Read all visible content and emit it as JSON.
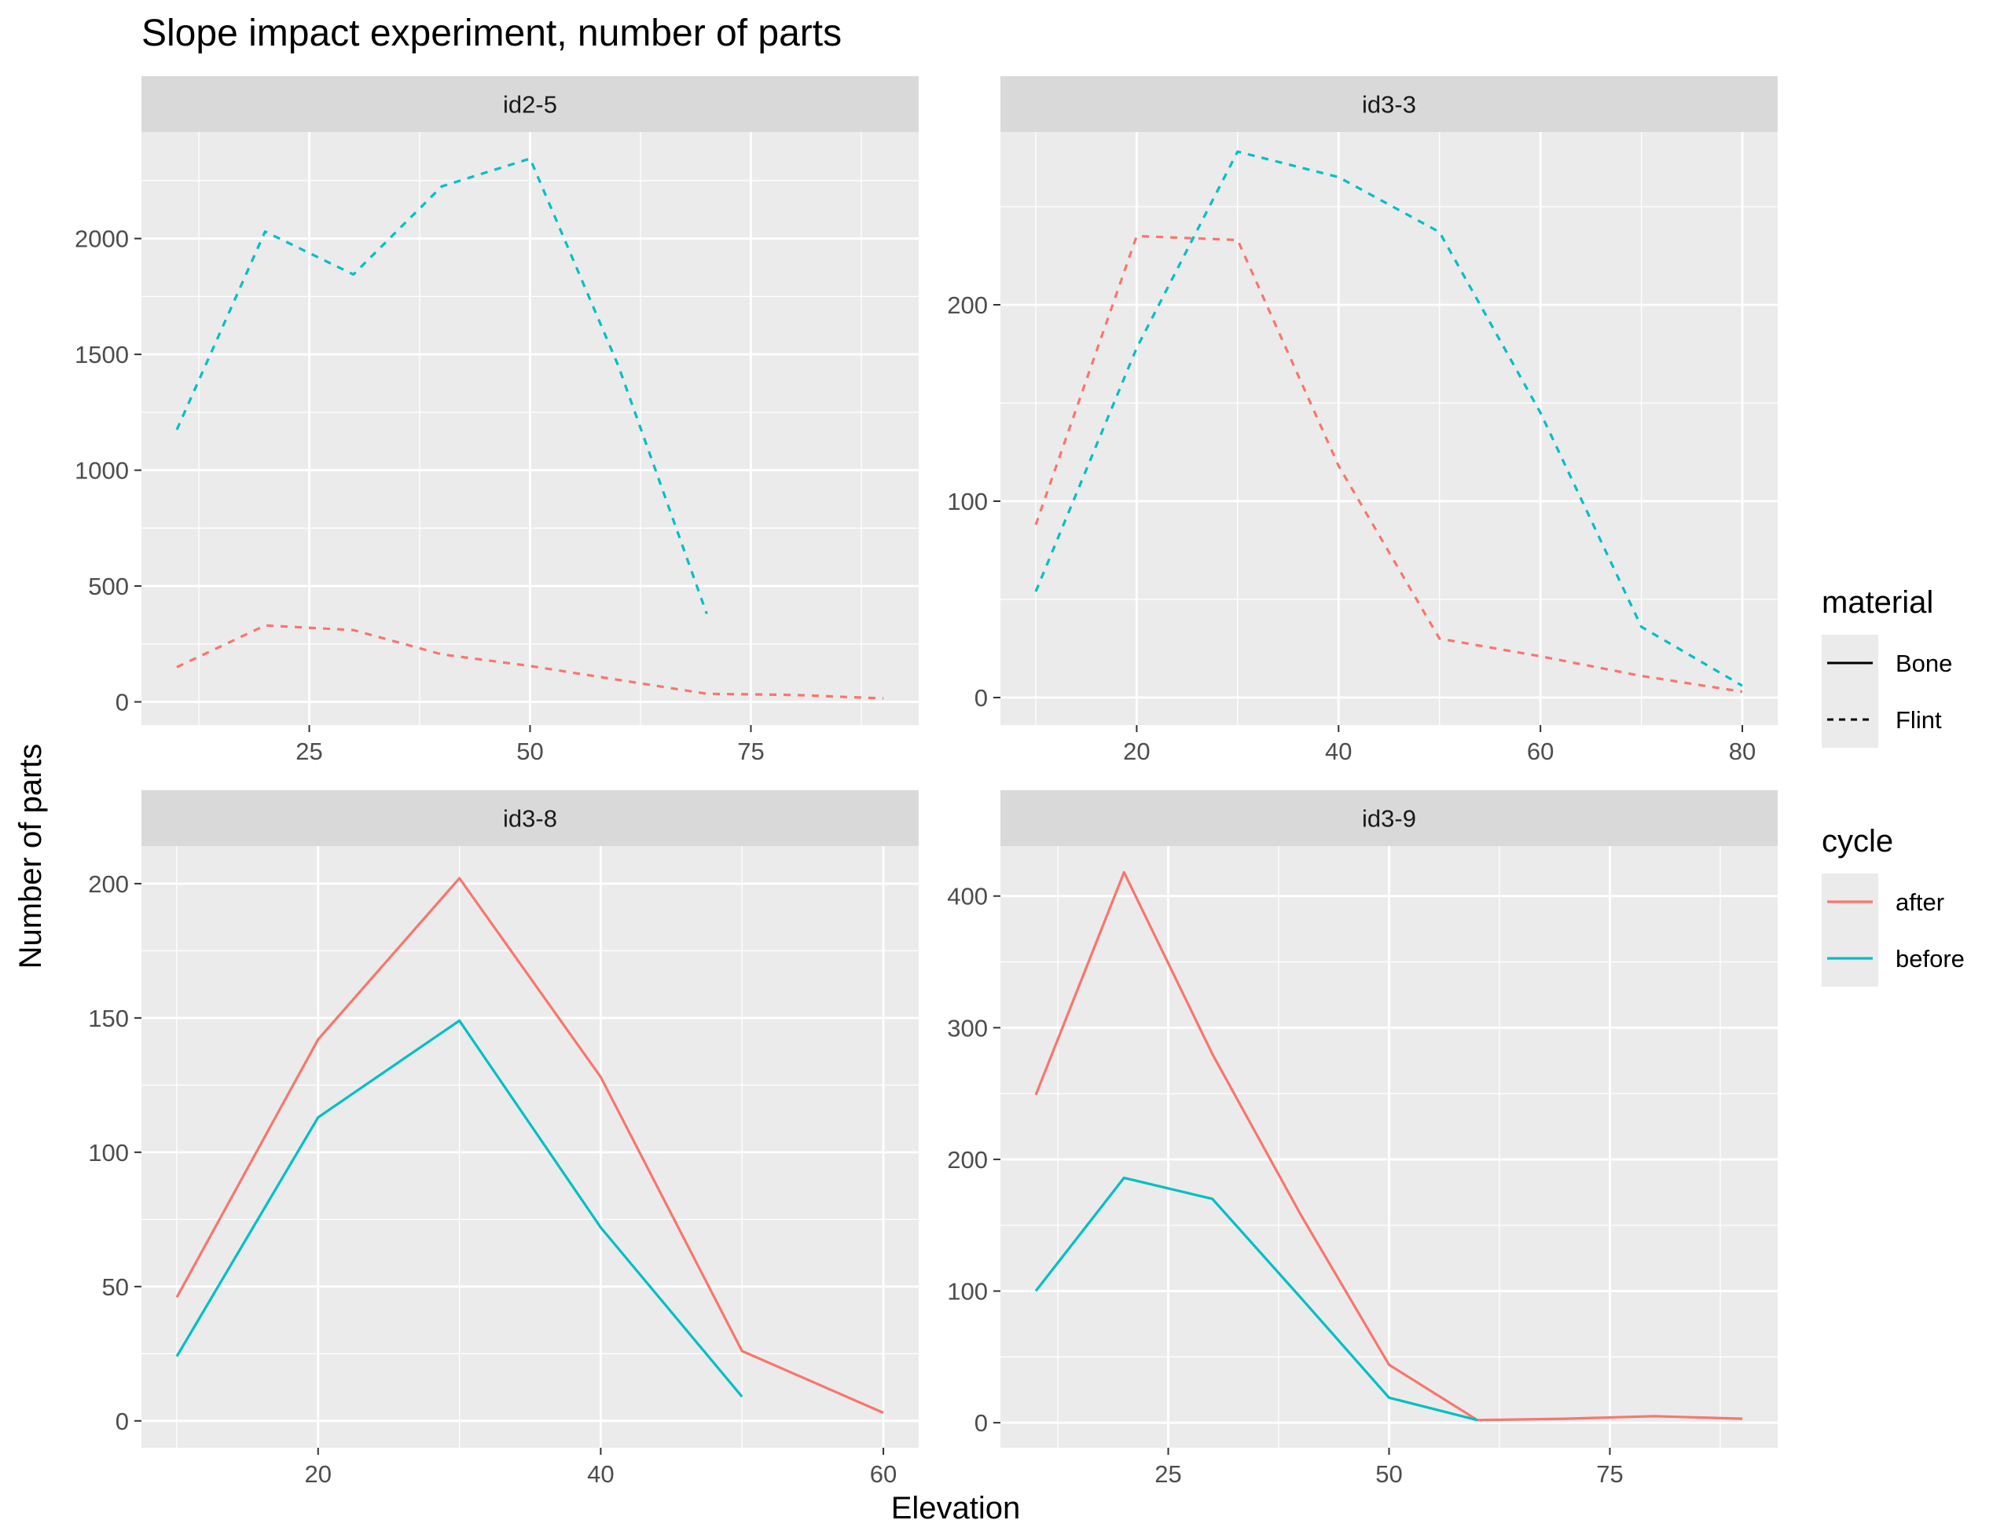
{
  "chart_data": {
    "type": "line",
    "title": "Slope impact experiment, number of parts",
    "xlabel": "Elevation",
    "ylabel": "Number of parts",
    "colors": {
      "after": "#F8766D",
      "before": "#00BFC4"
    },
    "legends": {
      "material": {
        "title": "material",
        "items": [
          {
            "label": "Bone",
            "linetype": "solid"
          },
          {
            "label": "Flint",
            "linetype": "dashed"
          }
        ]
      },
      "cycle": {
        "title": "cycle",
        "items": [
          {
            "label": "after",
            "color": "#F8766D"
          },
          {
            "label": "before",
            "color": "#00BFC4"
          }
        ]
      }
    },
    "legend_position": "right",
    "grid": true,
    "panels": [
      {
        "facet": "id2-5",
        "xlim": [
          6,
          94
        ],
        "ylim": [
          -100,
          2460
        ],
        "xticks": [
          25,
          50,
          75
        ],
        "xticks_minor": [
          12.5,
          37.5,
          62.5,
          87.5
        ],
        "yticks": [
          0,
          500,
          1000,
          1500,
          2000
        ],
        "yticks_minor": [
          250,
          750,
          1250,
          1750,
          2250
        ],
        "series": [
          {
            "material": "Flint",
            "cycle": "after",
            "x": [
              10,
              20,
              30,
              40,
              50,
              60,
              70,
              80,
              90
            ],
            "y": [
              150,
              330,
              310,
              205,
              155,
              95,
              35,
              30,
              15
            ]
          },
          {
            "material": "Flint",
            "cycle": "before",
            "x": [
              10,
              20,
              30,
              40,
              50,
              60,
              70
            ],
            "y": [
              1175,
              2030,
              1845,
              2225,
              2345,
              1450,
              380
            ]
          }
        ]
      },
      {
        "facet": "id3-3",
        "xlim": [
          6.5,
          83.5
        ],
        "ylim": [
          -14,
          288
        ],
        "xticks": [
          20,
          40,
          60,
          80
        ],
        "xticks_minor": [
          10,
          30,
          50,
          70
        ],
        "yticks": [
          0,
          100,
          200
        ],
        "yticks_minor": [
          50,
          150,
          250
        ],
        "series": [
          {
            "material": "Flint",
            "cycle": "after",
            "x": [
              10,
              20,
              30,
              40,
              50,
              60,
              70,
              80
            ],
            "y": [
              88,
              235,
              233,
              118,
              30,
              21,
              11,
              3
            ]
          },
          {
            "material": "Flint",
            "cycle": "before",
            "x": [
              10,
              20,
              30,
              40,
              50,
              60,
              70,
              80
            ],
            "y": [
              54,
              178,
              278,
              265,
              237,
              145,
              36,
              6
            ]
          }
        ]
      },
      {
        "facet": "id3-8",
        "xlim": [
          7.5,
          62.5
        ],
        "ylim": [
          -10,
          214
        ],
        "xticks": [
          20,
          40,
          60
        ],
        "xticks_minor": [
          10,
          30,
          50
        ],
        "yticks": [
          0,
          50,
          100,
          150,
          200
        ],
        "yticks_minor": [
          25,
          75,
          125,
          175
        ],
        "series": [
          {
            "material": "Bone",
            "cycle": "after",
            "x": [
              10,
              20,
              30,
              40,
              50,
              60
            ],
            "y": [
              46,
              142,
              202,
              128,
              26,
              3
            ]
          },
          {
            "material": "Bone",
            "cycle": "before",
            "x": [
              10,
              20,
              30,
              40,
              50
            ],
            "y": [
              24,
              113,
              149,
              72,
              9
            ]
          }
        ]
      },
      {
        "facet": "id3-9",
        "xlim": [
          6,
          94
        ],
        "ylim": [
          -19,
          438
        ],
        "xticks": [
          25,
          50,
          75
        ],
        "xticks_minor": [
          12.5,
          37.5,
          62.5,
          87.5
        ],
        "yticks": [
          0,
          100,
          200,
          300,
          400
        ],
        "yticks_minor": [
          50,
          150,
          250,
          350
        ],
        "series": [
          {
            "material": "Bone",
            "cycle": "after",
            "x": [
              10,
              20,
              30,
              40,
              50,
              60,
              70,
              80,
              90
            ],
            "y": [
              249,
              418,
              280,
              158,
              44,
              2,
              3,
              5,
              3
            ]
          },
          {
            "material": "Bone",
            "cycle": "before",
            "x": [
              10,
              20,
              30,
              40,
              50,
              60
            ],
            "y": [
              100,
              186,
              170,
              95,
              19,
              2
            ]
          }
        ]
      }
    ]
  }
}
